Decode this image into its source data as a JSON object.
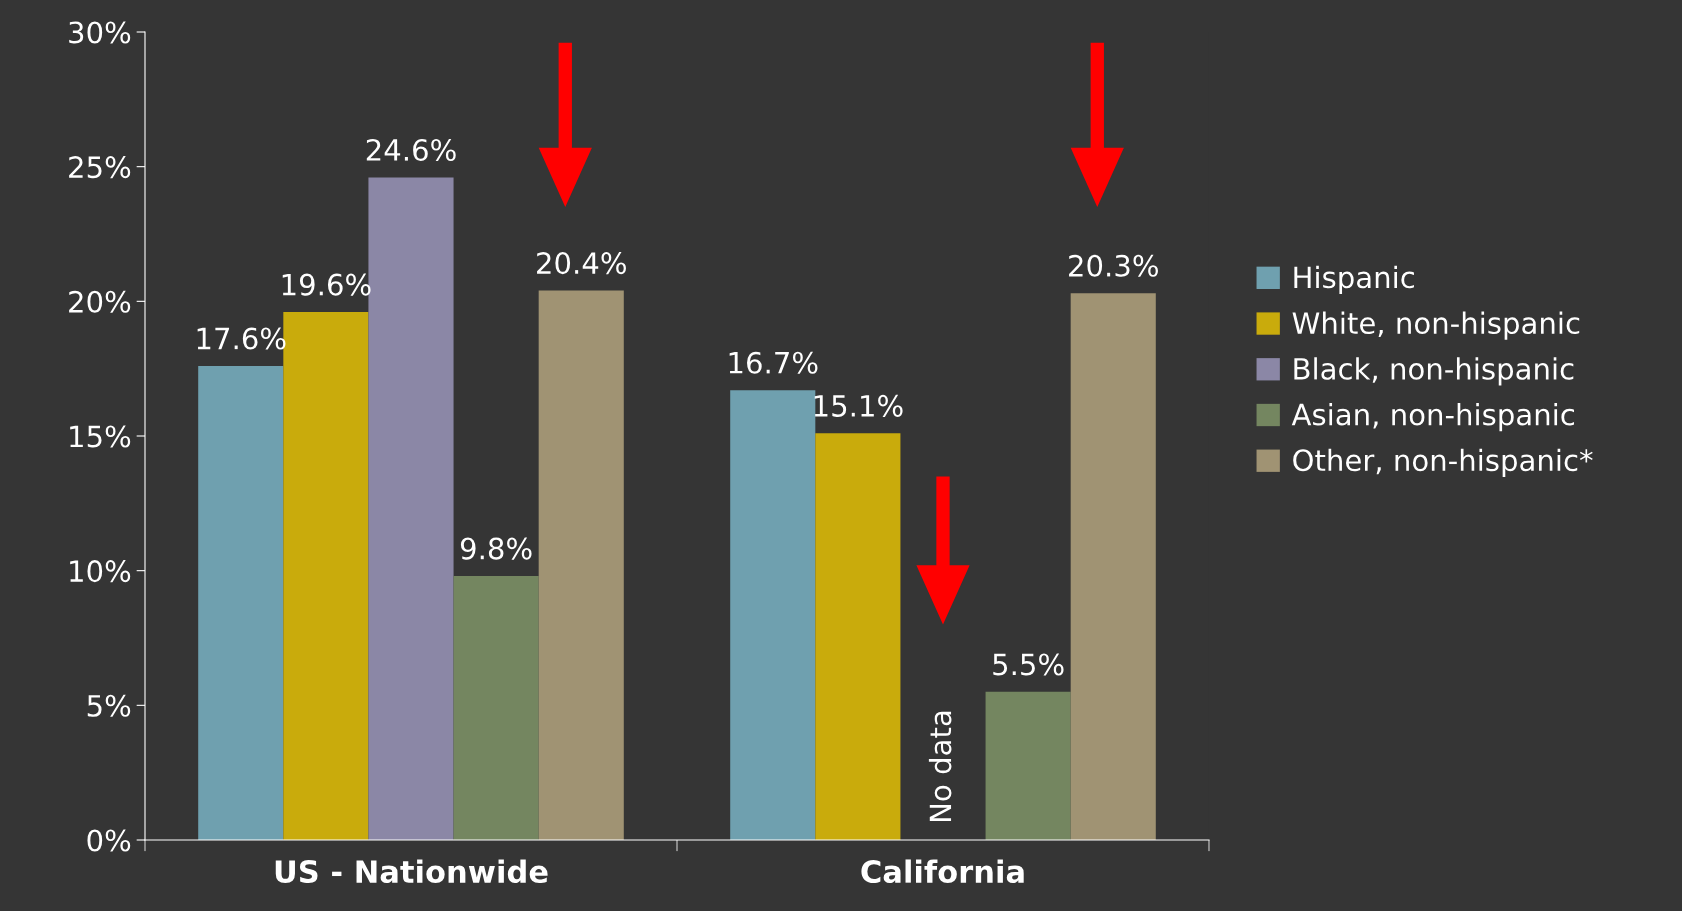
{
  "chart_data": {
    "type": "bar",
    "categories": [
      "US - Nationwide",
      "California"
    ],
    "series": [
      {
        "name": "Hispanic",
        "color": "#6fa0af",
        "values": [
          17.6,
          16.7
        ],
        "value_labels": [
          "17.6%",
          "16.7%"
        ]
      },
      {
        "name": "White, non-hispanic",
        "color": "#c9ab0c",
        "values": [
          19.6,
          15.1
        ],
        "value_labels": [
          "19.6%",
          "15.1%"
        ]
      },
      {
        "name": "Black, non-hispanic",
        "color": "#8b87a6",
        "values": [
          24.6,
          null
        ],
        "value_labels": [
          "24.6%",
          null
        ]
      },
      {
        "name": "Asian, non-hispanic",
        "color": "#748660",
        "values": [
          9.8,
          5.5
        ],
        "value_labels": [
          "9.8%",
          "5.5%"
        ]
      },
      {
        "name": "Other, non-hispanic*",
        "color": "#a09373",
        "values": [
          20.4,
          20.3
        ],
        "value_labels": [
          "20.4%",
          "20.3%"
        ]
      }
    ],
    "ylim": [
      0,
      30
    ],
    "yticks": [
      {
        "value": 0,
        "label": "0%"
      },
      {
        "value": 5,
        "label": "5%"
      },
      {
        "value": 10,
        "label": "10%"
      },
      {
        "value": 15,
        "label": "15%"
      },
      {
        "value": 20,
        "label": "20%"
      },
      {
        "value": 25,
        "label": "25%"
      },
      {
        "value": 30,
        "label": "30%"
      }
    ],
    "annotations": [
      "No data"
    ],
    "grid": false,
    "legend": "right"
  }
}
